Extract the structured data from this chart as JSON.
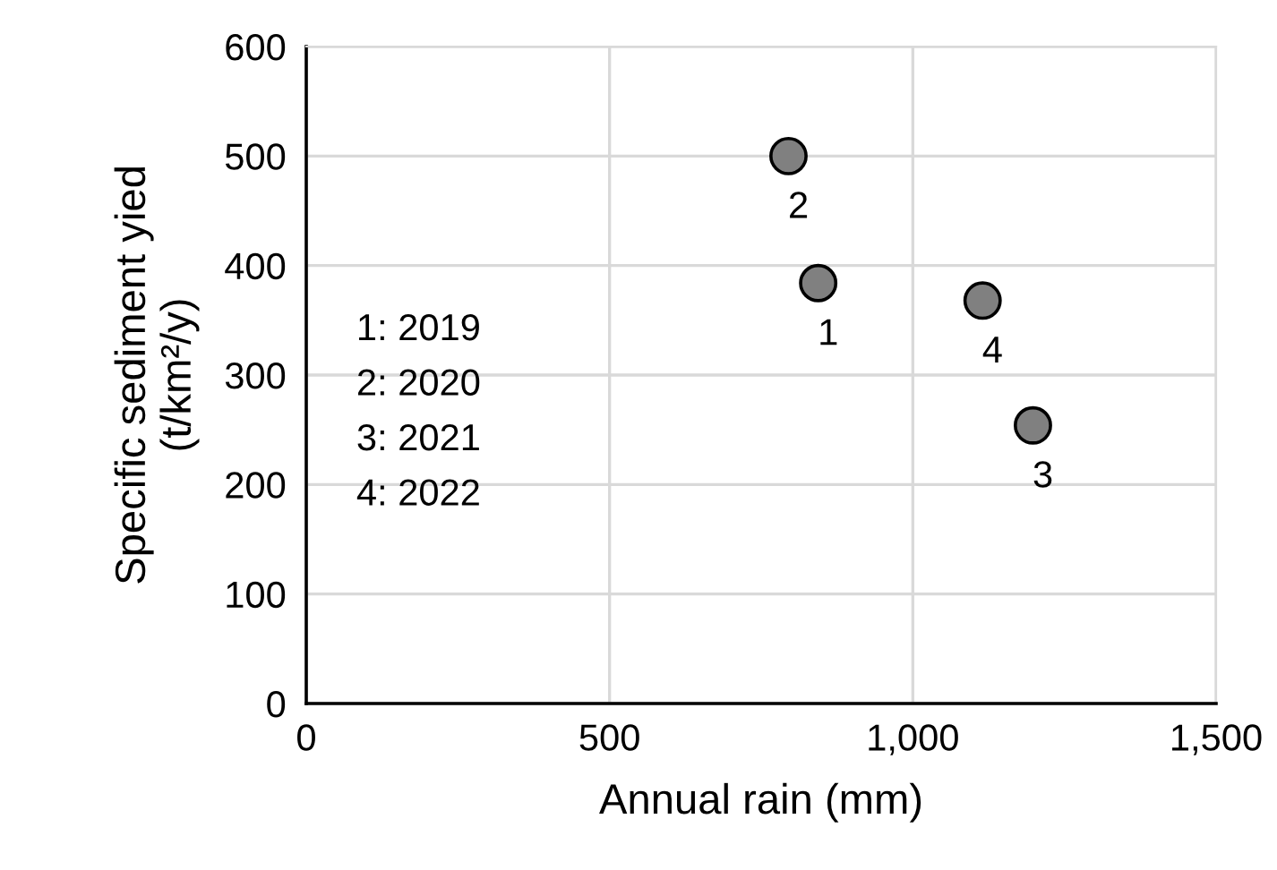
{
  "chart_data": {
    "type": "scatter",
    "xlabel": "Annual rain (mm)",
    "ylabel": "Specific sediment yied\n(t/km²/y)",
    "x": [
      844,
      795,
      1198,
      1115
    ],
    "values": [
      384,
      500,
      254,
      368
    ],
    "color": "#808080",
    "marker": "circle",
    "xlim": [
      0,
      1500
    ],
    "xticks": [
      0,
      500,
      {
        "value": 1000,
        "label": "1,000"
      },
      {
        "value": 1500,
        "label": "1,500"
      }
    ],
    "ylim": [
      0,
      600
    ],
    "yticks": [
      0,
      100,
      200,
      300,
      400,
      500,
      600
    ],
    "grid": true,
    "annotations": [
      {
        "text": "1",
        "x": 844,
        "y": 384
      },
      {
        "text": "2",
        "x": 795,
        "y": 500
      },
      {
        "text": "3",
        "x": 1198,
        "y": 254
      },
      {
        "text": "4",
        "x": 1115,
        "y": 368
      },
      "1: 2019\n2: 2020\n3: 2021\n4: 2022"
    ]
  }
}
